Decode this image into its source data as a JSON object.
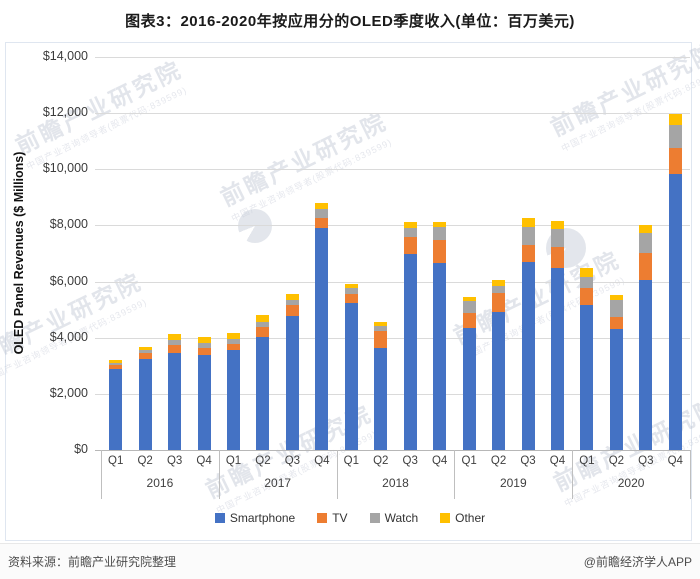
{
  "title": "图表3：2016-2020年按应用分的OLED季度收入(单位：百万美元)",
  "footer": {
    "source": "资料来源：前瞻产业研究院整理",
    "brand": "@前瞻经济学人APP"
  },
  "watermark": {
    "text": "前瞻产业研究院",
    "subtext": "中国产业咨询领导者(股票代码:839599)"
  },
  "chart_data": {
    "type": "bar",
    "stacked": true,
    "title": "图表3：2016-2020年按应用分的OLED季度收入(单位：百万美元)",
    "ylabel": "OLED Panel Revenues ($ Millions)",
    "ylim": [
      0,
      14000
    ],
    "ytick_step": 2000,
    "ytick_labels": [
      "$0",
      "$2,000",
      "$4,000",
      "$6,000",
      "$8,000",
      "$10,000",
      "$12,000",
      "$14,000"
    ],
    "grid": true,
    "legend_position": "bottom",
    "years": [
      "2016",
      "2017",
      "2018",
      "2019",
      "2020"
    ],
    "quarters": [
      "Q1",
      "Q2",
      "Q3",
      "Q4"
    ],
    "categories": [
      "2016 Q1",
      "2016 Q2",
      "2016 Q3",
      "2016 Q4",
      "2017 Q1",
      "2017 Q2",
      "2017 Q3",
      "2017 Q4",
      "2018 Q1",
      "2018 Q2",
      "2018 Q3",
      "2018 Q4",
      "2019 Q1",
      "2019 Q2",
      "2019 Q3",
      "2019 Q4",
      "2020 Q1",
      "2020 Q2",
      "2020 Q3",
      "2020 Q4"
    ],
    "series": [
      {
        "name": "Smartphone",
        "color": "#4472C4",
        "values": [
          2870,
          3230,
          3470,
          3380,
          3560,
          4040,
          4770,
          7900,
          5225,
          3620,
          6980,
          6670,
          4360,
          4925,
          6710,
          6470,
          5175,
          4310,
          6055,
          9830
        ]
      },
      {
        "name": "TV",
        "color": "#ED7D31",
        "values": [
          150,
          215,
          270,
          260,
          215,
          355,
          390,
          375,
          330,
          630,
          595,
          810,
          515,
          675,
          595,
          770,
          585,
          440,
          950,
          935
        ]
      },
      {
        "name": "Watch",
        "color": "#A5A5A5",
        "values": [
          85,
          115,
          180,
          180,
          165,
          180,
          180,
          300,
          205,
          170,
          320,
          475,
          440,
          240,
          650,
          620,
          415,
          595,
          710,
          810
        ]
      },
      {
        "name": "Other",
        "color": "#FFC000",
        "values": [
          95,
          120,
          200,
          215,
          235,
          240,
          205,
          235,
          150,
          150,
          235,
          180,
          130,
          215,
          320,
          305,
          300,
          180,
          295,
          390
        ]
      }
    ],
    "totals": [
      3200,
      3680,
      4120,
      4035,
      4175,
      4815,
      5545,
      8810,
      5910,
      4570,
      8130,
      8135,
      5445,
      6055,
      8275,
      8165,
      6475,
      5525,
      8010,
      11965
    ]
  }
}
